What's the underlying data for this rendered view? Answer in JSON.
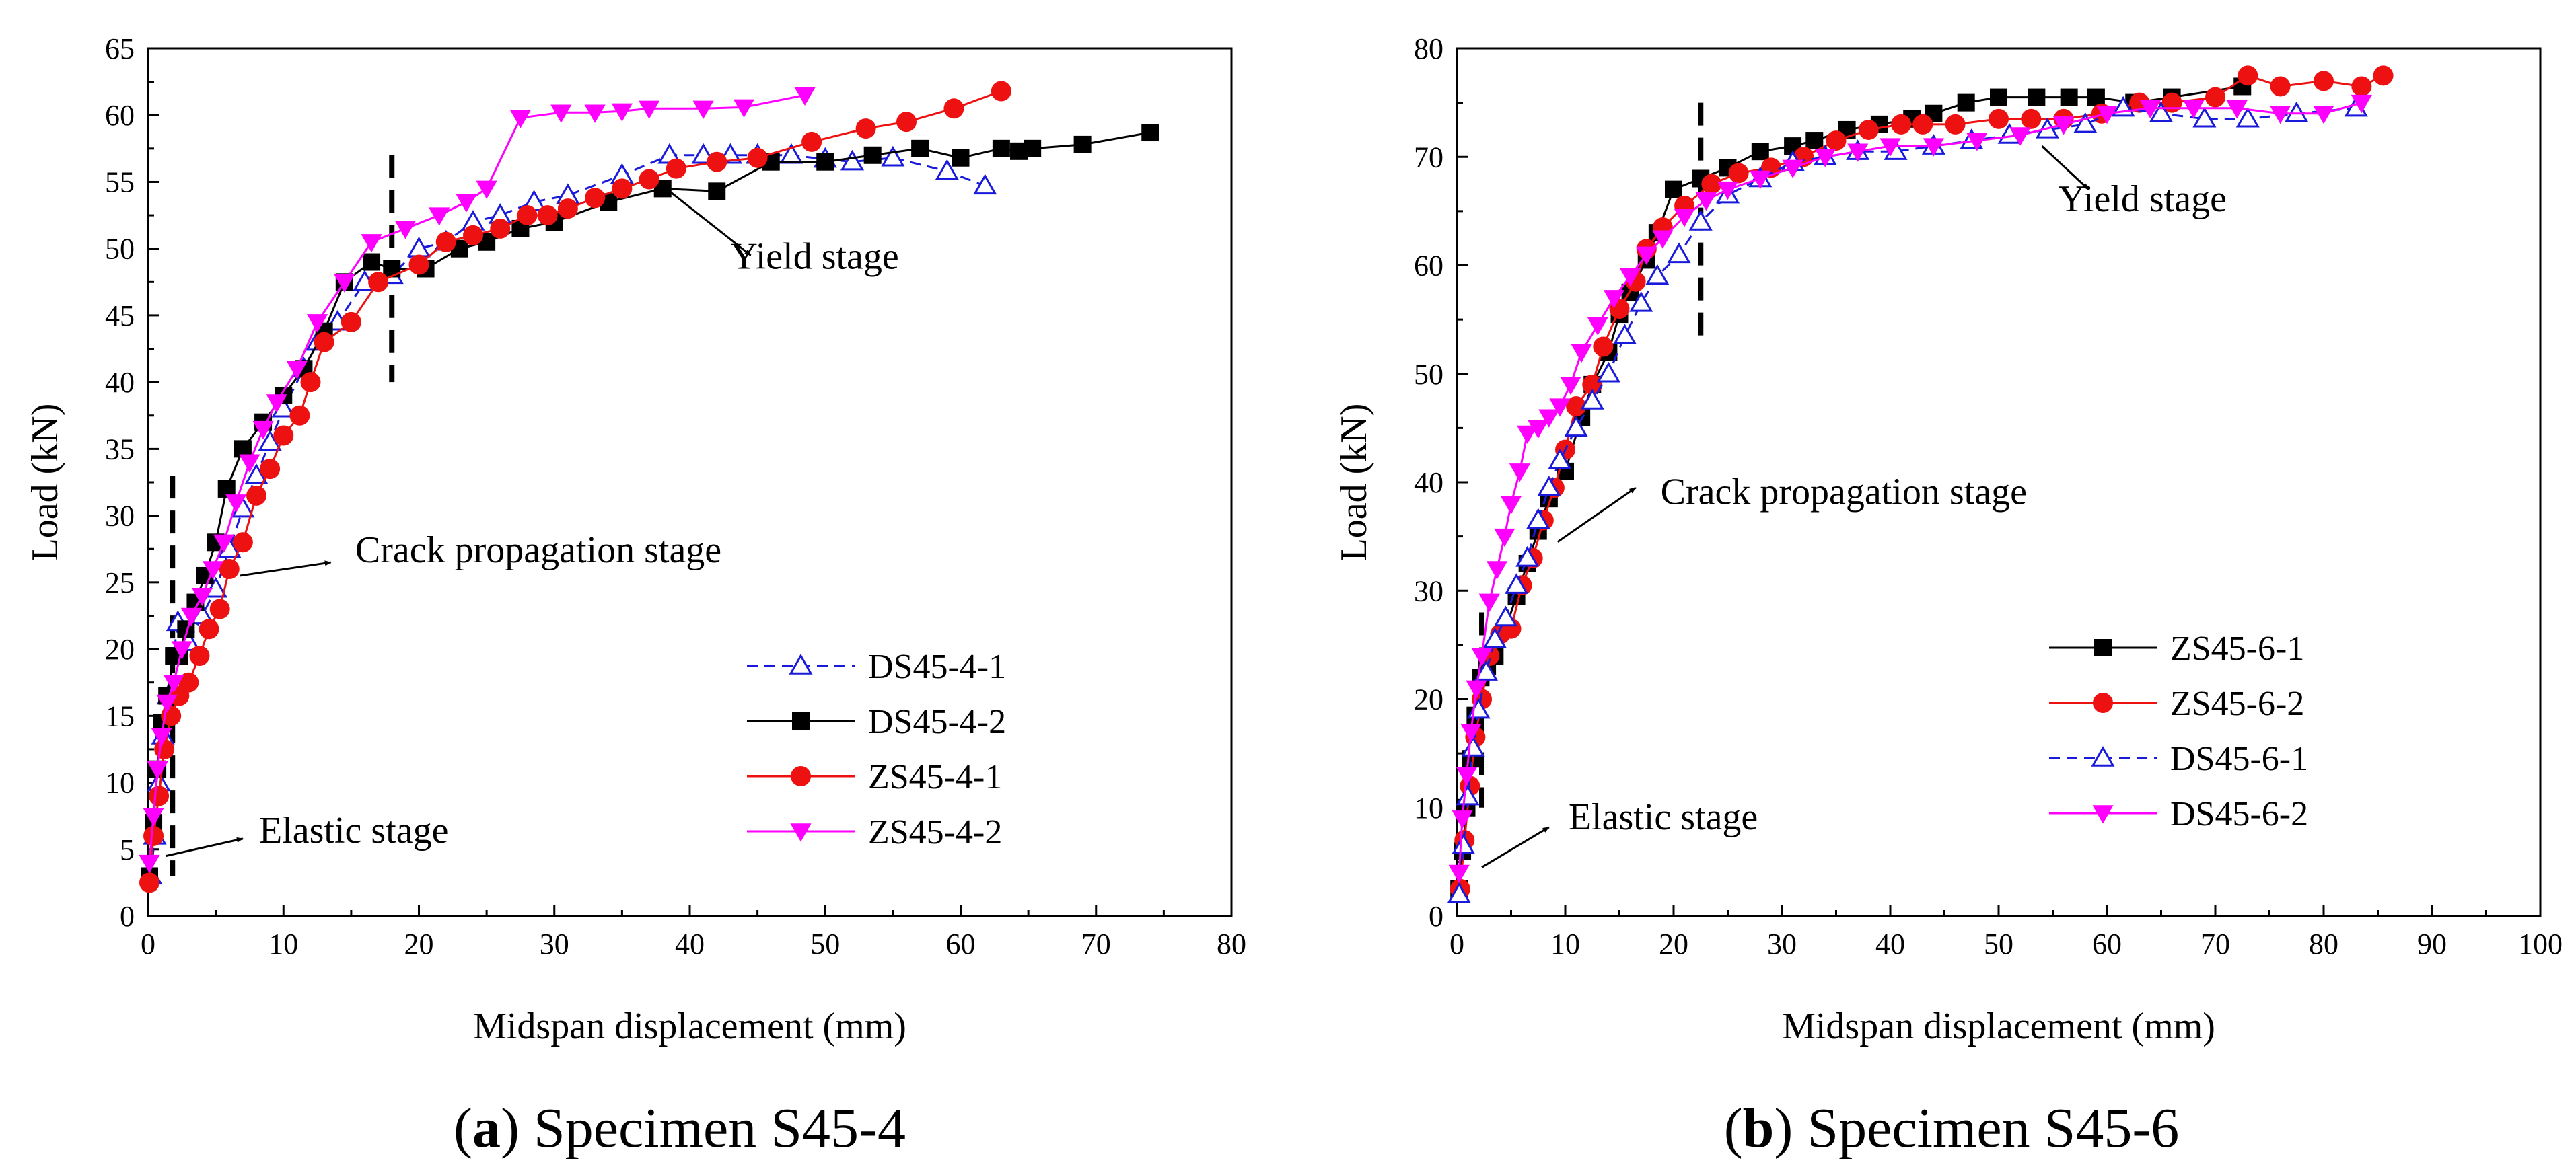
{
  "chart_data": [
    {
      "type": "line",
      "panel_label": "a",
      "caption": "Specimen S45-4",
      "xlabel": "Midspan displacement (mm)",
      "ylabel": "Load (kN)",
      "xlim": [
        0,
        80
      ],
      "ylim": [
        0,
        65
      ],
      "xticks": [
        0,
        10,
        20,
        30,
        40,
        50,
        60,
        70,
        80
      ],
      "yticks": [
        0,
        5,
        10,
        15,
        20,
        25,
        30,
        35,
        40,
        45,
        50,
        55,
        60,
        65
      ],
      "grid": false,
      "legend_position": "center-right",
      "stage_dividers": [
        {
          "x": 1.8,
          "y_range": [
            3,
            33
          ]
        },
        {
          "x": 18.0,
          "y_range": [
            40,
            57
          ]
        }
      ],
      "annotations": [
        {
          "text": "Elastic stage",
          "arrow_from": [
            1.3,
            4.5
          ],
          "arrow_to": [
            7,
            5.8
          ],
          "text_at": [
            8.2,
            5.5
          ]
        },
        {
          "text": "Crack propagation stage",
          "arrow_from": [
            6.8,
            25.5
          ],
          "arrow_to": [
            13.5,
            26.5
          ],
          "text_at": [
            15.3,
            26.5
          ]
        },
        {
          "text": "Yield stage",
          "arrow_from": [
            38.5,
            54.3
          ],
          "arrow_to": [
            44.5,
            49.5
          ],
          "text_at": [
            43,
            48.5
          ]
        }
      ],
      "series": [
        {
          "name": "DS45-4-1",
          "color": "#1a1adb",
          "dash": true,
          "marker": "triangle-open",
          "x": [
            0.2,
            0.5,
            0.8,
            1.1,
            1.5,
            2.2,
            3,
            4,
            5,
            6,
            7,
            8,
            9,
            10,
            11.5,
            12.5,
            14,
            16,
            18,
            20,
            22,
            24,
            26,
            28.5,
            31,
            35,
            38.5,
            41,
            43,
            45,
            47.5,
            50,
            52,
            55,
            59,
            61.8
          ],
          "y": [
            3,
            6,
            10,
            13.5,
            16.5,
            22,
            20.5,
            22.5,
            24.5,
            27.5,
            30.5,
            33,
            35.5,
            38,
            41,
            43,
            44.5,
            47.5,
            48,
            50,
            50.5,
            52,
            52.5,
            53.5,
            54,
            55.5,
            57,
            57,
            57,
            57,
            57,
            56.7,
            56.5,
            56.8,
            55.8,
            54.7
          ]
        },
        {
          "name": "DS45-4-2",
          "color": "#000000",
          "dash": false,
          "marker": "square",
          "x": [
            0.1,
            0.4,
            0.7,
            1,
            1.4,
            1.9,
            2.3,
            2.8,
            3.5,
            4.2,
            5.0,
            5.8,
            7,
            8.5,
            10,
            11.5,
            13,
            14.5,
            16.5,
            18,
            20.5,
            23,
            25,
            27.5,
            30,
            34,
            38,
            42,
            46,
            50,
            53.5,
            57,
            60,
            63,
            64.3,
            65.3,
            69,
            74
          ],
          "y": [
            3,
            7,
            11,
            14.5,
            16.5,
            19.5,
            19.5,
            21.5,
            23.5,
            25.5,
            28,
            32,
            35,
            37,
            39,
            41,
            43.8,
            47.5,
            49,
            48.5,
            48.5,
            50,
            50.5,
            51.5,
            52,
            53.5,
            54.5,
            54.3,
            56.5,
            56.5,
            57,
            57.5,
            56.8,
            57.5,
            57.3,
            57.5,
            57.8,
            58.7
          ]
        },
        {
          "name": "ZS45-4-1",
          "color": "#ee1111",
          "dash": false,
          "marker": "circle",
          "x": [
            0.1,
            0.4,
            0.8,
            1.2,
            1.7,
            2.3,
            3,
            3.8,
            4.5,
            5.3,
            6,
            7,
            8,
            9,
            10,
            11.2,
            12,
            13,
            15,
            17,
            20,
            22,
            24,
            26,
            28,
            29.5,
            31,
            33,
            35,
            37,
            39,
            42,
            45,
            49,
            53,
            56,
            59.5,
            63
          ],
          "y": [
            2.5,
            6,
            9,
            12.5,
            15,
            16.5,
            17.5,
            19.5,
            21.5,
            23,
            26,
            28,
            31.5,
            33.5,
            36,
            37.5,
            40,
            43,
            44.5,
            47.5,
            48.8,
            50.5,
            51,
            51.5,
            52.5,
            52.5,
            53,
            53.8,
            54.5,
            55.2,
            56,
            56.5,
            56.8,
            58,
            59,
            59.5,
            60.5,
            61.8
          ]
        },
        {
          "name": "ZS45-4-2",
          "color": "#ff00ff",
          "dash": false,
          "marker": "triangle-down",
          "x": [
            0.1,
            0.4,
            0.7,
            1,
            1.4,
            1.9,
            2.5,
            3.2,
            4,
            4.8,
            5.6,
            6.5,
            7.5,
            8.5,
            9.5,
            11,
            12.5,
            14.5,
            16.5,
            19,
            21.5,
            23.5,
            25,
            27.5,
            30.5,
            33,
            35,
            37,
            41,
            44,
            48.5
          ],
          "y": [
            4,
            7.5,
            11,
            13.5,
            16,
            17.5,
            20,
            22.5,
            24,
            26,
            28,
            31,
            34,
            36.5,
            38.5,
            41,
            44.5,
            47.5,
            50.5,
            51.5,
            52.5,
            53.5,
            54.5,
            59.8,
            60.2,
            60.2,
            60.3,
            60.5,
            60.5,
            60.6,
            61.5
          ]
        }
      ]
    },
    {
      "type": "line",
      "panel_label": "b",
      "caption": "Specimen S45-6",
      "xlabel": "Midspan displacement (mm)",
      "ylabel": "Load (kN)",
      "xlim": [
        0,
        100
      ],
      "ylim": [
        0,
        80
      ],
      "xticks": [
        0,
        10,
        20,
        30,
        40,
        50,
        60,
        70,
        80,
        90,
        100
      ],
      "yticks": [
        0,
        10,
        20,
        30,
        40,
        50,
        60,
        70,
        80
      ],
      "grid": false,
      "legend_position": "center-right",
      "stage_dividers": [
        {
          "x": 2.3,
          "y_range": [
            10,
            28
          ]
        },
        {
          "x": 22.5,
          "y_range": [
            53,
            75
          ]
        }
      ],
      "annotations": [
        {
          "text": "Elastic stage",
          "arrow_from": [
            2.3,
            4.5
          ],
          "arrow_to": [
            8.5,
            8.2
          ],
          "text_at": [
            10.3,
            8
          ]
        },
        {
          "text": "Crack propagation stage",
          "arrow_from": [
            9.3,
            34.5
          ],
          "arrow_to": [
            16.5,
            39.5
          ],
          "text_at": [
            18.8,
            38
          ]
        },
        {
          "text": "Yield stage",
          "arrow_from": [
            54,
            71
          ],
          "arrow_to": [
            58.3,
            67
          ],
          "text_at": [
            55.5,
            65
          ]
        }
      ],
      "series": [
        {
          "name": "ZS45-6-1",
          "color": "#000000",
          "dash": false,
          "marker": "square",
          "x": [
            0.2,
            0.5,
            0.9,
            1.3,
            1.7,
            2.2,
            2.8,
            3.5,
            4.5,
            5.5,
            6.5,
            7.5,
            8.5,
            10,
            11.5,
            12.5,
            14,
            15,
            16,
            17.5,
            18.5,
            20,
            22.5,
            25,
            28,
            31,
            33,
            36,
            39,
            42,
            44,
            47,
            50,
            53.5,
            56.5,
            59,
            62.5,
            66,
            72.5
          ],
          "y": [
            2.5,
            6,
            10,
            14.5,
            18.5,
            22,
            23,
            24,
            26.5,
            29.5,
            32.5,
            35.5,
            38.5,
            41,
            46,
            49,
            52,
            55.5,
            57.5,
            60.5,
            63,
            67,
            68,
            69,
            70.5,
            71,
            71.5,
            72.5,
            73,
            73.5,
            74,
            75,
            75.5,
            75.5,
            75.5,
            75.5,
            75,
            75.5,
            76.5
          ]
        },
        {
          "name": "ZS45-6-2",
          "color": "#ee1111",
          "dash": false,
          "marker": "circle",
          "x": [
            0.3,
            0.7,
            1.2,
            1.7,
            2.3,
            3,
            4,
            5,
            6,
            7,
            8,
            9,
            10,
            11,
            12.5,
            13.5,
            15,
            16.5,
            17.5,
            19,
            21,
            23.5,
            26,
            29,
            32,
            35,
            38,
            41,
            43,
            46,
            50,
            53,
            56,
            59.5,
            63,
            66,
            70,
            73,
            76,
            80,
            83.5,
            85.5
          ],
          "y": [
            2.5,
            7,
            12,
            16.5,
            20,
            24,
            26,
            26.5,
            30.5,
            33,
            36.5,
            39.5,
            43,
            47,
            49,
            52.5,
            56,
            58.5,
            61.5,
            63.5,
            65.5,
            67.5,
            68.5,
            69,
            70,
            71.5,
            72.5,
            73,
            73,
            73,
            73.5,
            73.5,
            73.5,
            74,
            75,
            75,
            75.5,
            77.5,
            76.5,
            77,
            76.5,
            77.5
          ]
        },
        {
          "name": "DS45-6-1",
          "color": "#1a1adb",
          "dash": true,
          "marker": "triangle-open",
          "x": [
            0.2,
            0.6,
            1,
            1.5,
            2,
            2.7,
            3.5,
            4.5,
            5.5,
            6.5,
            7.5,
            8.5,
            9.5,
            11,
            12.5,
            14,
            15.5,
            17,
            18.5,
            20.5,
            22.5,
            25,
            28,
            31,
            34,
            37,
            40.5,
            44,
            47.5,
            51,
            54.5,
            58,
            61.5,
            65,
            69,
            73,
            77.5,
            83
          ],
          "y": [
            2,
            6.5,
            11,
            15.5,
            19,
            22.5,
            25.5,
            27.5,
            30.5,
            33,
            36.5,
            39.5,
            42,
            45,
            47.5,
            50,
            53.5,
            56.5,
            59,
            61,
            64,
            66.5,
            68,
            69.5,
            70,
            70.5,
            70.5,
            71,
            71.5,
            72,
            72.5,
            73,
            74.5,
            74,
            73.5,
            73.5,
            74,
            74.5
          ]
        },
        {
          "name": "DS45-6-2",
          "color": "#ff00ff",
          "dash": false,
          "marker": "triangle-down",
          "x": [
            0.2,
            0.5,
            0.9,
            1.3,
            1.8,
            2.3,
            3,
            3.7,
            4.4,
            5,
            5.8,
            6.5,
            7.5,
            8.5,
            9.5,
            10.5,
            11.5,
            13,
            14.5,
            16,
            17.5,
            19,
            21,
            23,
            25,
            28,
            31,
            34,
            37,
            40,
            44,
            48,
            52,
            56,
            60,
            64,
            68,
            72,
            76,
            80,
            83.5
          ],
          "y": [
            4,
            9,
            13,
            17,
            21,
            24,
            29,
            32,
            35,
            38,
            41,
            44.5,
            45,
            46,
            47,
            49,
            52,
            54.5,
            57,
            59,
            61,
            62.5,
            64.5,
            66,
            67,
            68,
            69,
            70,
            70.5,
            71,
            71,
            71.5,
            72,
            73,
            74,
            74.5,
            74.5,
            74.5,
            74,
            74,
            75
          ]
        }
      ]
    }
  ]
}
